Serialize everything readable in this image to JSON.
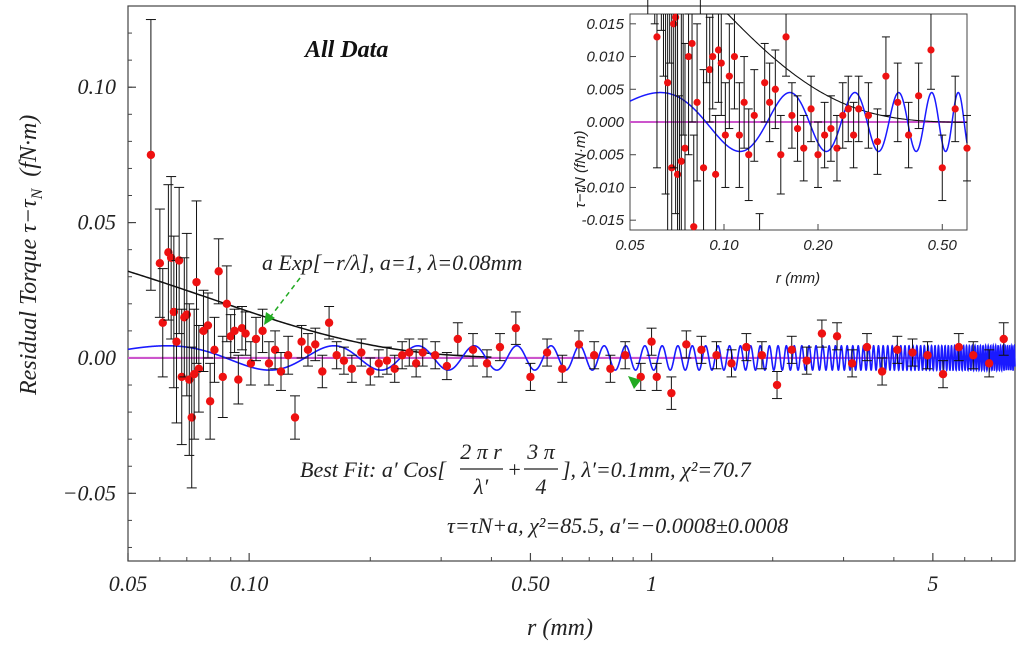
{
  "chart_data": [
    {
      "type": "scatter",
      "name": "main",
      "title": "All Data",
      "xlabel": "r (mm)",
      "ylabel": "Residual Torque τ−τ",
      "ylabel_sub": "N",
      "ylabel_unit": "(fN·m)",
      "xscale": "log",
      "xlim": [
        0.05,
        8.0
      ],
      "ylim": [
        -0.075,
        0.13
      ],
      "xticks": [
        0.05,
        0.1,
        0.5,
        1,
        5
      ],
      "xtick_labels": [
        "0.05",
        "0.10",
        "0.50",
        "1",
        "5"
      ],
      "yticks": [
        0.1,
        0.05,
        0.0,
        -0.05
      ],
      "ytick_labels": [
        "0.10",
        "0.05",
        "0.00",
        "−0.05"
      ],
      "x": [
        0.057,
        0.06,
        0.061,
        0.063,
        0.064,
        0.065,
        0.066,
        0.067,
        0.068,
        0.069,
        0.07,
        0.071,
        0.072,
        0.073,
        0.074,
        0.075,
        0.077,
        0.079,
        0.08,
        0.082,
        0.084,
        0.086,
        0.088,
        0.09,
        0.092,
        0.094,
        0.096,
        0.098,
        0.101,
        0.104,
        0.108,
        0.112,
        0.116,
        0.12,
        0.125,
        0.13,
        0.135,
        0.14,
        0.146,
        0.152,
        0.158,
        0.165,
        0.172,
        0.18,
        0.19,
        0.2,
        0.21,
        0.22,
        0.23,
        0.24,
        0.25,
        0.26,
        0.27,
        0.29,
        0.31,
        0.33,
        0.36,
        0.39,
        0.42,
        0.46,
        0.5,
        0.55,
        0.6,
        0.66,
        0.72,
        0.79,
        0.86,
        0.94,
        1.0,
        1.03,
        1.12,
        1.22,
        1.33,
        1.45,
        1.58,
        1.72,
        1.88,
        2.05,
        2.23,
        2.43,
        2.65,
        2.89,
        3.15,
        3.43,
        3.74,
        4.08,
        4.45,
        4.85,
        5.3,
        5.8,
        6.3,
        6.9,
        7.5
      ],
      "y": [
        0.075,
        0.035,
        0.013,
        0.039,
        0.037,
        0.017,
        0.006,
        0.036,
        -0.007,
        0.015,
        0.016,
        -0.008,
        -0.022,
        -0.006,
        0.028,
        -0.004,
        0.01,
        0.012,
        -0.016,
        0.003,
        0.032,
        -0.007,
        0.02,
        0.008,
        0.01,
        -0.008,
        0.011,
        0.009,
        -0.002,
        0.007,
        0.01,
        -0.002,
        0.003,
        -0.005,
        0.001,
        -0.022,
        0.006,
        0.003,
        0.005,
        -0.005,
        0.013,
        0.001,
        -0.001,
        -0.004,
        0.002,
        -0.005,
        -0.002,
        -0.001,
        -0.004,
        0.001,
        0.002,
        -0.002,
        0.002,
        0.001,
        -0.003,
        0.007,
        0.003,
        -0.002,
        0.004,
        0.011,
        -0.007,
        0.002,
        -0.004,
        0.005,
        0.001,
        -0.004,
        0.001,
        -0.007,
        0.006,
        -0.007,
        -0.013,
        0.005,
        0.003,
        0.001,
        -0.002,
        0.004,
        0.001,
        -0.01,
        0.003,
        -0.001,
        0.009,
        0.008,
        -0.002,
        0.004,
        -0.005,
        0.003,
        0.002,
        0.001,
        -0.006,
        0.004,
        0.001,
        -0.002,
        0.007
      ],
      "yerr": [
        0.05,
        0.02,
        0.02,
        0.025,
        0.03,
        0.028,
        0.03,
        0.027,
        0.025,
        0.022,
        0.03,
        0.028,
        0.026,
        0.024,
        0.03,
        0.016,
        0.015,
        0.012,
        0.014,
        0.012,
        0.012,
        0.015,
        0.014,
        0.008,
        0.008,
        0.009,
        0.008,
        0.008,
        0.008,
        0.008,
        0.008,
        0.008,
        0.007,
        0.007,
        0.007,
        0.008,
        0.006,
        0.006,
        0.006,
        0.006,
        0.006,
        0.005,
        0.005,
        0.005,
        0.005,
        0.005,
        0.005,
        0.005,
        0.005,
        0.005,
        0.005,
        0.005,
        0.005,
        0.005,
        0.005,
        0.006,
        0.006,
        0.005,
        0.005,
        0.006,
        0.005,
        0.005,
        0.005,
        0.005,
        0.005,
        0.005,
        0.005,
        0.005,
        0.005,
        0.005,
        0.006,
        0.005,
        0.005,
        0.005,
        0.005,
        0.005,
        0.005,
        0.005,
        0.005,
        0.005,
        0.005,
        0.005,
        0.005,
        0.005,
        0.005,
        0.005,
        0.005,
        0.005,
        0.005,
        0.005,
        0.005,
        0.005,
        0.006
      ],
      "series": [
        {
          "name": "exponential",
          "formula": "a Exp[−r/λ]",
          "a": 1,
          "lambda_mm": 0.08,
          "color": "#111111"
        },
        {
          "name": "best-fit cosine",
          "amplitude": 0.0045,
          "lambda_prime_mm": 0.1,
          "phase": 2.356,
          "color": "#1a1aff"
        },
        {
          "name": "zero line",
          "value": 0,
          "color": "#cc55cc"
        }
      ],
      "marker_color": "#ee1111",
      "annotations": {
        "exp_label": "a Exp[−r/λ], a=1, λ=0.08mm",
        "fit_label_prefix": "Best Fit: a′ Cos[",
        "fit_frac1_num": "2 π r",
        "fit_frac1_den": "λ′",
        "fit_plus": "+",
        "fit_frac2_num": "3 π",
        "fit_frac2_den": "4",
        "fit_label_suffix": "],  λ′=0.1mm,    χ²=70.7",
        "const_label": "τ=τN+a, χ²=85.5, a′=−0.0008±0.0008"
      },
      "arrow_color": "#22aa22"
    },
    {
      "type": "scatter",
      "name": "inset",
      "xlabel": "r (mm)",
      "ylabel": "τ−τN  (fN·m)",
      "xscale": "log",
      "xlim": [
        0.05,
        0.6
      ],
      "ylim": [
        -0.0165,
        0.0165
      ],
      "xticks": [
        0.05,
        0.1,
        0.2,
        0.5
      ],
      "xtick_labels": [
        "0.05",
        "0.10",
        "0.20",
        "0.50"
      ],
      "yticks": [
        0.015,
        0.01,
        0.005,
        0.0,
        -0.005,
        -0.01,
        -0.015
      ],
      "ytick_labels": [
        "0.015",
        "0.010",
        "0.005",
        "0.000",
        "-0.005",
        "-0.010",
        "-0.015"
      ]
    }
  ]
}
